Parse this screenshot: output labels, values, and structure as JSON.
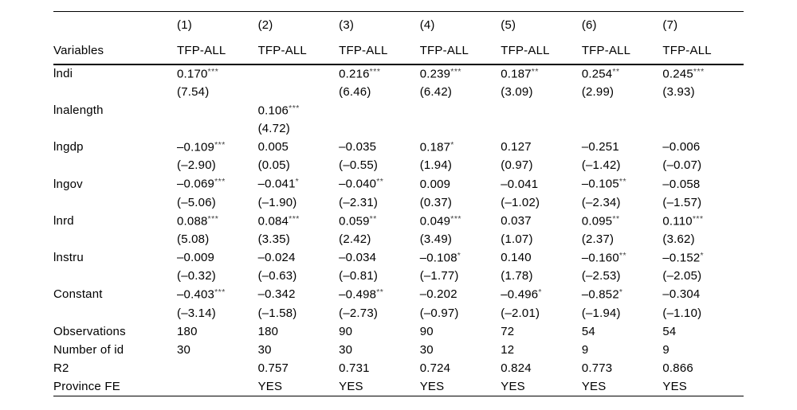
{
  "page": {
    "background_color": "#ffffff",
    "text_color": "#000000",
    "rule_color": "#000000"
  },
  "table": {
    "header_label": "Variables",
    "columns": [
      "(1)",
      "(2)",
      "(3)",
      "(4)",
      "(5)",
      "(6)",
      "(7)"
    ],
    "dep_vars": [
      "TFP-ALL",
      "TFP-ALL",
      "TFP-ALL",
      "TFP-ALL",
      "TFP-ALL",
      "TFP-ALL",
      "TFP-ALL"
    ],
    "rows": [
      {
        "label": "lndi",
        "cells": [
          "0.170***",
          "",
          "0.216***",
          "0.239***",
          "0.187**",
          "0.254**",
          "0.245***"
        ]
      },
      {
        "label": "",
        "cells": [
          "(7.54)",
          "",
          "(6.46)",
          "(6.42)",
          "(3.09)",
          "(2.99)",
          "(3.93)"
        ]
      },
      {
        "label": "lnalength",
        "cells": [
          "",
          "0.106***",
          "",
          "",
          "",
          "",
          ""
        ]
      },
      {
        "label": "",
        "cells": [
          "",
          "(4.72)",
          "",
          "",
          "",
          "",
          ""
        ]
      },
      {
        "label": "lngdp",
        "cells": [
          "–0.109***",
          "0.005",
          "–0.035",
          "0.187*",
          "0.127",
          "–0.251",
          "–0.006"
        ]
      },
      {
        "label": "",
        "cells": [
          "(–2.90)",
          "(0.05)",
          "(–0.55)",
          "(1.94)",
          "(0.97)",
          "(–1.42)",
          "(–0.07)"
        ]
      },
      {
        "label": "lngov",
        "cells": [
          "–0.069***",
          "–0.041*",
          "–0.040**",
          "0.009",
          "–0.041",
          "–0.105**",
          "–0.058"
        ]
      },
      {
        "label": "",
        "cells": [
          "(–5.06)",
          "(–1.90)",
          "(–2.31)",
          "(0.37)",
          "(–1.02)",
          "(–2.34)",
          "(–1.57)"
        ]
      },
      {
        "label": "lnrd",
        "cells": [
          "0.088***",
          "0.084***",
          "0.059**",
          "0.049***",
          "0.037",
          "0.095**",
          "0.110***"
        ]
      },
      {
        "label": "",
        "cells": [
          "(5.08)",
          "(3.35)",
          "(2.42)",
          "(3.49)",
          "(1.07)",
          "(2.37)",
          "(3.62)"
        ]
      },
      {
        "label": "lnstru",
        "cells": [
          "–0.009",
          "–0.024",
          "–0.034",
          "–0.108*",
          "0.140",
          "–0.160**",
          "–0.152*"
        ]
      },
      {
        "label": "",
        "cells": [
          "(–0.32)",
          "(–0.63)",
          "(–0.81)",
          "(–1.77)",
          "(1.78)",
          "(–2.53)",
          "(–2.05)"
        ]
      },
      {
        "label": "Constant",
        "cells": [
          "–0.403***",
          "–0.342",
          "–0.498**",
          "–0.202",
          "–0.496*",
          "–0.852*",
          "–0.304"
        ]
      },
      {
        "label": "",
        "cells": [
          "(–3.14)",
          "(–1.58)",
          "(–2.73)",
          "(–0.97)",
          "(–2.01)",
          "(–1.94)",
          "(–1.10)"
        ]
      },
      {
        "label": "Observations",
        "cells": [
          "180",
          "180",
          "90",
          "90",
          "72",
          "54",
          "54"
        ]
      },
      {
        "label": "Number of id",
        "cells": [
          "30",
          "30",
          "30",
          "30",
          "12",
          "9",
          "9"
        ]
      },
      {
        "label": "R2",
        "cells": [
          "",
          "0.757",
          "0.731",
          "0.724",
          "0.824",
          "0.773",
          "0.866"
        ]
      },
      {
        "label": "Province FE",
        "cells": [
          "",
          "YES",
          "YES",
          "YES",
          "YES",
          "YES",
          "YES"
        ]
      }
    ]
  }
}
